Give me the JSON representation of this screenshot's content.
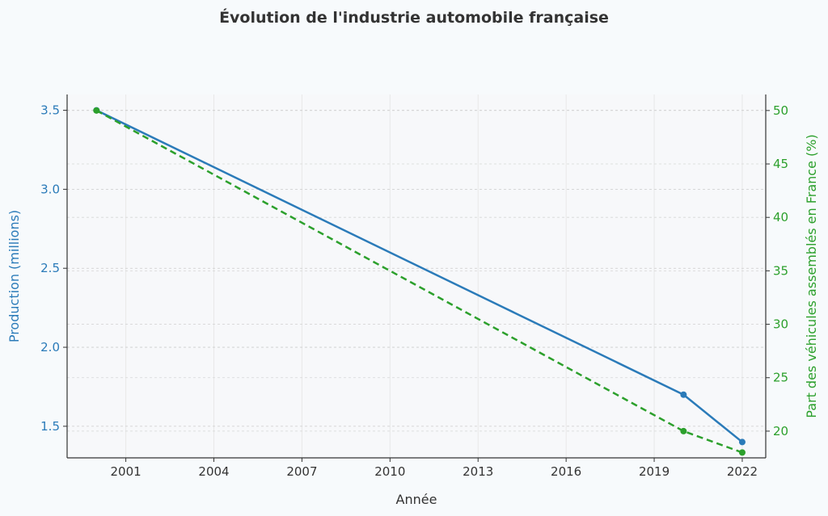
{
  "chart_data": {
    "type": "line",
    "title": "Évolution de l'industrie automobile française",
    "xlabel": "Année",
    "ylabel_left": "Production (millions)",
    "ylabel_right": "Part des véhicules assemblés en France (%)",
    "x_ticks": [
      "2001",
      "2004",
      "2007",
      "2010",
      "2013",
      "2016",
      "2019",
      "2022"
    ],
    "xlim": [
      1999.0,
      2022.8
    ],
    "y_left_ticks": [
      "1.5",
      "2.0",
      "2.5",
      "3.0",
      "3.5"
    ],
    "y_left_lim": [
      1.3,
      3.6
    ],
    "y_right_ticks": [
      "20",
      "25",
      "30",
      "35",
      "40",
      "45",
      "50"
    ],
    "y_right_lim": [
      17.5,
      51.5
    ],
    "grid": true,
    "series": [
      {
        "name": "Production (millions)",
        "axis": "left",
        "color": "#2b7bb9",
        "style": "solid",
        "x": [
          2000,
          2020,
          2022
        ],
        "y": [
          3.5,
          1.7,
          1.4
        ]
      },
      {
        "name": "Part des véhicules assemblés en France (%)",
        "axis": "right",
        "color": "#2ca02c",
        "style": "dashed",
        "x": [
          2000,
          2020,
          2022
        ],
        "y": [
          50,
          20,
          18
        ]
      }
    ],
    "colors": {
      "left_axis": "#2b7bb9",
      "right_axis": "#2ca02c",
      "text": "#333333"
    }
  }
}
